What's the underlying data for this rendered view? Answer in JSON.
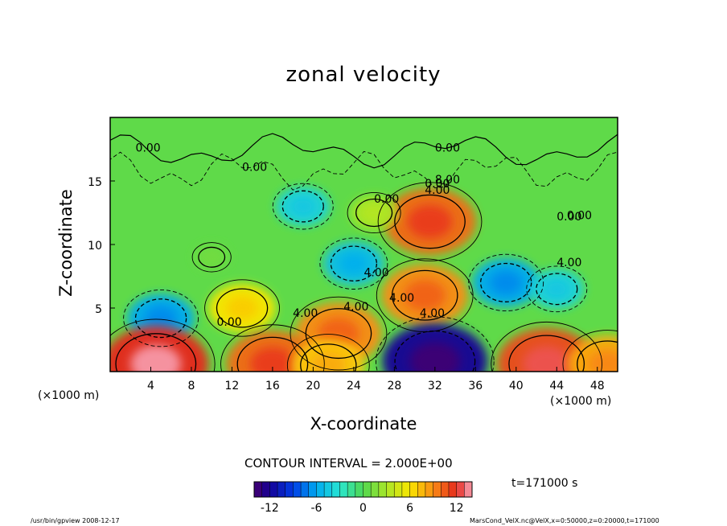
{
  "chart_data": {
    "type": "heatmap",
    "title": "zonal velocity",
    "xlabel": "X-coordinate",
    "ylabel": "Z-coordinate",
    "x_unit": "(×1000 m)",
    "y_unit": "(×1000 m)",
    "xlim": [
      0,
      50
    ],
    "ylim": [
      0,
      20
    ],
    "x_ticks": [
      "4",
      "8",
      "12",
      "16",
      "20",
      "24",
      "28",
      "32",
      "36",
      "40",
      "44",
      "48"
    ],
    "y_ticks": [
      "5",
      "10",
      "15"
    ],
    "contour_labels": [
      "0.00",
      "0.00",
      "0.00",
      "0.00",
      "0.00",
      "0.00",
      "0.00",
      "4.00",
      "4.00",
      "4.00",
      "4.00",
      "4.00",
      "4.00",
      "4.00",
      "8.00",
      "0.00"
    ],
    "contour_interval": "CONTOUR INTERVAL = 2.000E+00",
    "colorbar": {
      "ticks": [
        "-12",
        "-6",
        "0",
        "6",
        "12"
      ],
      "min": -14,
      "max": 14
    },
    "time": "t=171000 s",
    "blobs": [
      {
        "x": 31.5,
        "z": 11.8,
        "value": 10
      },
      {
        "x": 31.0,
        "z": 6.0,
        "value": 9
      },
      {
        "x": 22.5,
        "z": 3.0,
        "value": 9
      },
      {
        "x": 13.0,
        "z": 5.0,
        "value": 6
      },
      {
        "x": 5.0,
        "z": 4.2,
        "value": -6
      },
      {
        "x": 24.0,
        "z": 8.5,
        "value": -5
      },
      {
        "x": 19.0,
        "z": 13.0,
        "value": -4
      },
      {
        "x": 39.0,
        "z": 7.0,
        "value": -6
      },
      {
        "x": 44.0,
        "z": 6.5,
        "value": -4
      },
      {
        "x": 4.5,
        "z": 0.6,
        "value": 12
      },
      {
        "x": 16.0,
        "z": 0.6,
        "value": 10
      },
      {
        "x": 21.5,
        "z": 0.5,
        "value": 7
      },
      {
        "x": 32.0,
        "z": 0.8,
        "value": -12
      },
      {
        "x": 43.0,
        "z": 0.6,
        "value": 11
      },
      {
        "x": 49.0,
        "z": 0.6,
        "value": 8
      },
      {
        "x": 26.0,
        "z": 12.5,
        "value": 3
      },
      {
        "x": 10.0,
        "z": 9.0,
        "value": 1
      }
    ]
  },
  "footer": {
    "left": "/usr/bin/gpview   2008-12-17",
    "right": "MarsCond_VelX.nc@VelX,x=0:50000,z=0:20000,t=171000"
  }
}
